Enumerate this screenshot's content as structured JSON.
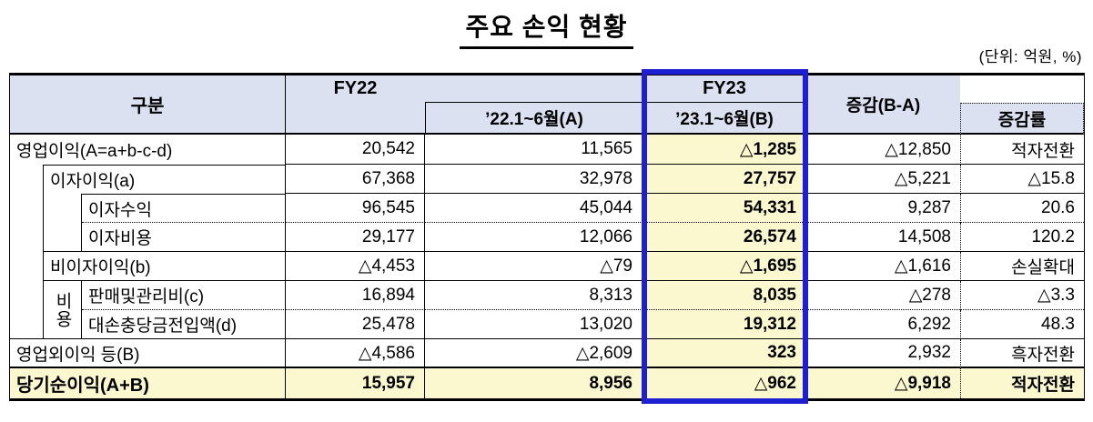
{
  "title": "주요 손익 현황",
  "unit_label": "(단위: 억원, %)",
  "colors": {
    "header_bg": "#dbe1f1",
    "highlight_bg": "#fbf8d0",
    "highlight_border": "#1e1fd0"
  },
  "header": {
    "category": "구분",
    "fy22": "FY22",
    "fy22_half": "’22.1~6월(A)",
    "fy23": "FY23",
    "fy23_half": "’23.1~6월(B)",
    "change": "증감(B-A)",
    "change_rate": "증감률"
  },
  "expense_group": "비용",
  "rows": [
    {
      "label": "영업이익(A=a+b-c-d)",
      "fy22": "20,542",
      "h22": "11,565",
      "h23": "△1,285",
      "diff": "△12,850",
      "rate": "적자전환"
    },
    {
      "label": "이자이익(a)",
      "fy22": "67,368",
      "h22": "32,978",
      "h23": "27,757",
      "diff": "△5,221",
      "rate": "△15.8"
    },
    {
      "label": "이자수익",
      "fy22": "96,545",
      "h22": "45,044",
      "h23": "54,331",
      "diff": "9,287",
      "rate": "20.6"
    },
    {
      "label": "이자비용",
      "fy22": "29,177",
      "h22": "12,066",
      "h23": "26,574",
      "diff": "14,508",
      "rate": "120.2"
    },
    {
      "label": "비이자이익(b)",
      "fy22": "△4,453",
      "h22": "△79",
      "h23": "△1,695",
      "diff": "△1,616",
      "rate": "손실확대"
    },
    {
      "label": "판매및관리비(c)",
      "fy22": "16,894",
      "h22": "8,313",
      "h23": "8,035",
      "diff": "△278",
      "rate": "△3.3"
    },
    {
      "label": "대손충당금전입액(d)",
      "fy22": "25,478",
      "h22": "13,020",
      "h23": "19,312",
      "diff": "6,292",
      "rate": "48.3"
    },
    {
      "label": "영업외이익 등(B)",
      "fy22": "△4,586",
      "h22": "△2,609",
      "h23": "323",
      "diff": "2,932",
      "rate": "흑자전환"
    },
    {
      "label": "당기순이익(A+B)",
      "fy22": "15,957",
      "h22": "8,956",
      "h23": "△962",
      "diff": "△9,918",
      "rate": "적자전환"
    }
  ]
}
